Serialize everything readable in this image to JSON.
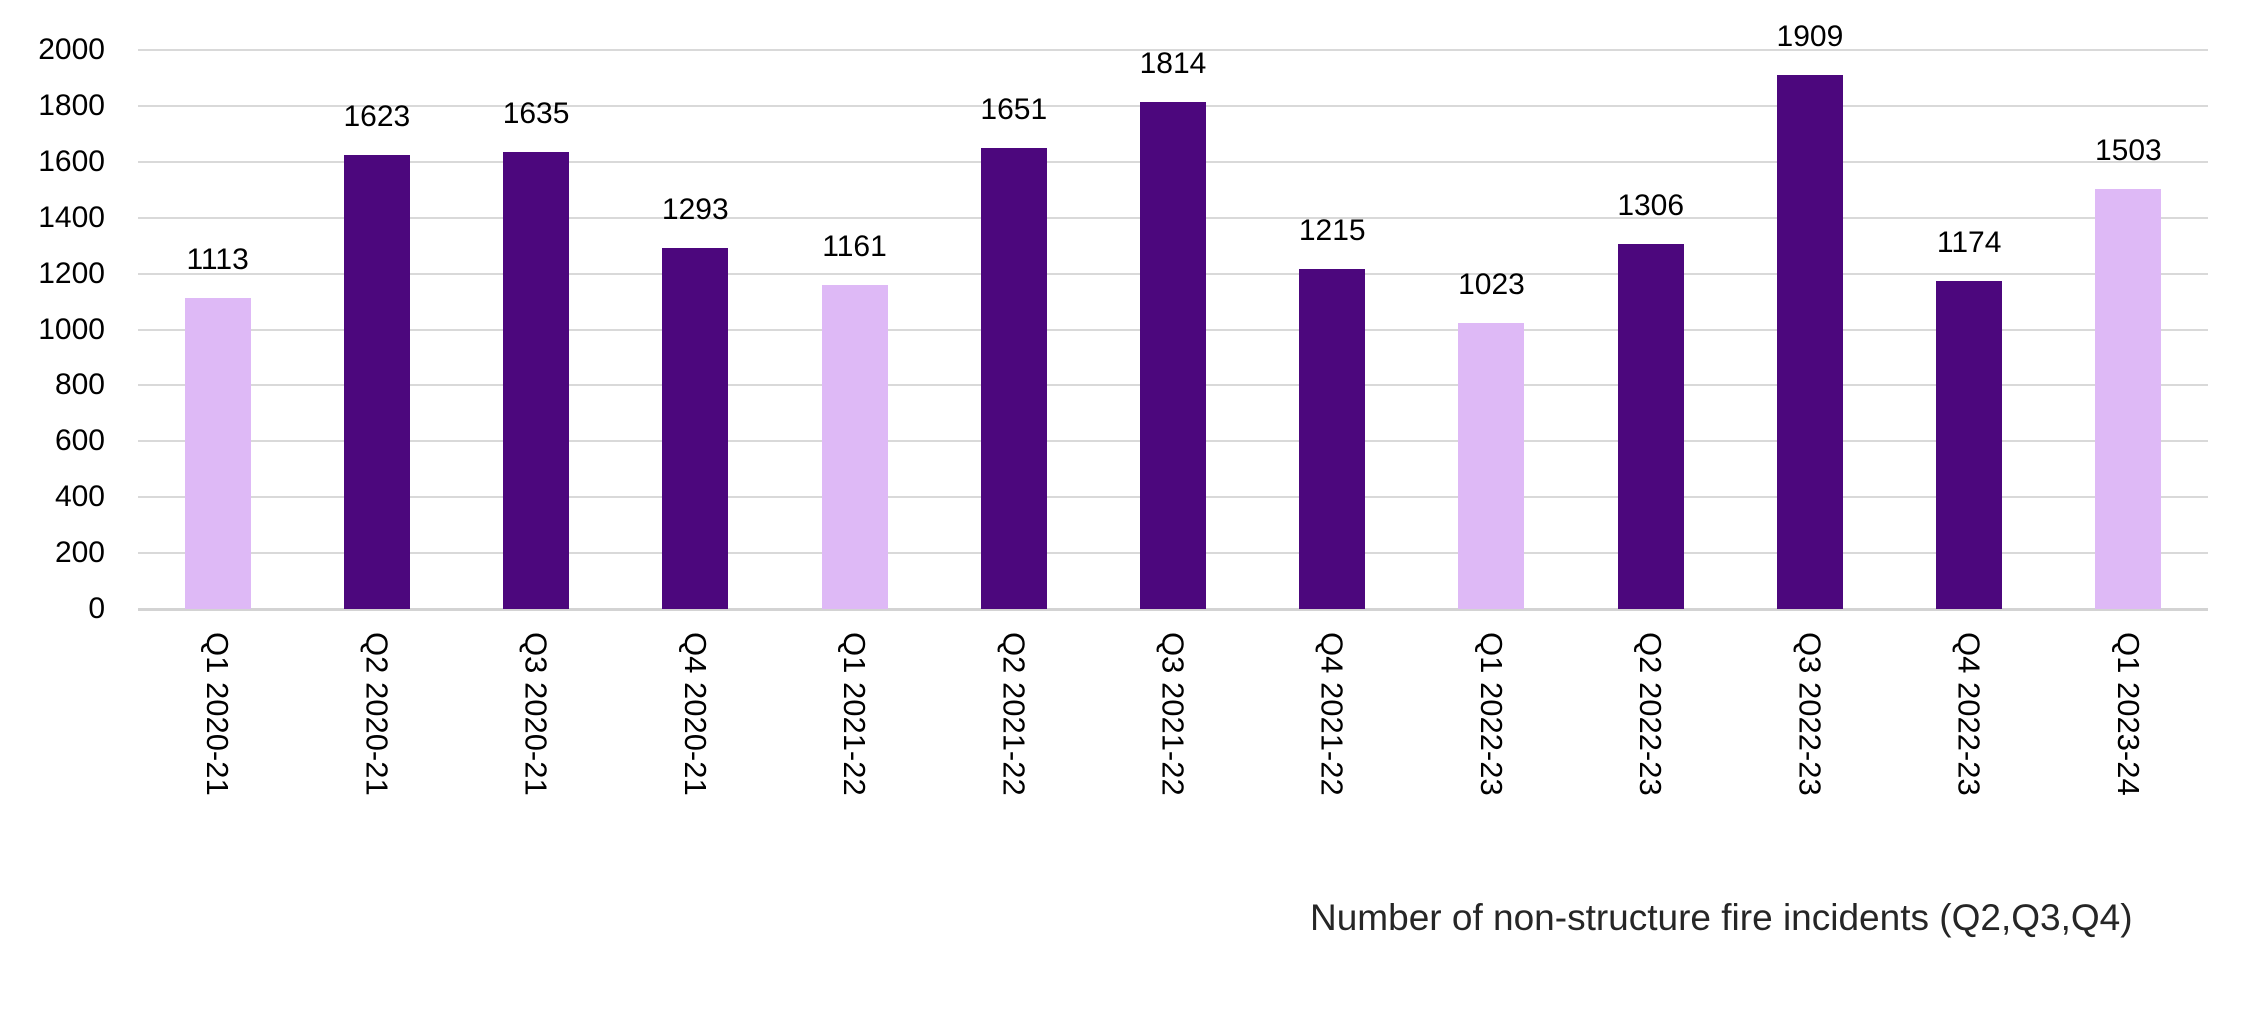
{
  "chart_data": {
    "type": "bar",
    "title": "",
    "caption": "Number of non-structure fire incidents (Q2,Q3,Q4)",
    "categories": [
      "Q1 2020-21",
      "Q2 2020-21",
      "Q3 2020-21",
      "Q4 2020-21",
      "Q1 2021-22",
      "Q2 2021-22",
      "Q3 2021-22",
      "Q4 2021-22",
      "Q1 2022-23",
      "Q2 2022-23",
      "Q3 2022-23",
      "Q4 2022-23",
      "Q1 2023-24"
    ],
    "values": [
      1113,
      1623,
      1635,
      1293,
      1161,
      1651,
      1814,
      1215,
      1023,
      1306,
      1909,
      1174,
      1503
    ],
    "xlabel": "",
    "ylabel": "",
    "ylim": [
      0,
      2000
    ],
    "yticks": [
      0,
      200,
      400,
      600,
      800,
      1000,
      1200,
      1400,
      1600,
      1800,
      2000
    ],
    "grid": true,
    "legend_position": "none",
    "data_labels": true,
    "x_label_rotation": "rotated 90 degrees, reading top to bottom",
    "color_rule": "Q1 quarter bars are light purple; Q2, Q3, Q4 quarter bars are dark purple",
    "colors": {
      "bar_q1": "#deb9f6",
      "bar_other": "#4c077d",
      "gridline": "#d9d9d9",
      "axis_line": "#d3d3d3",
      "label_text": "#000000",
      "caption_text": "#262626"
    }
  }
}
